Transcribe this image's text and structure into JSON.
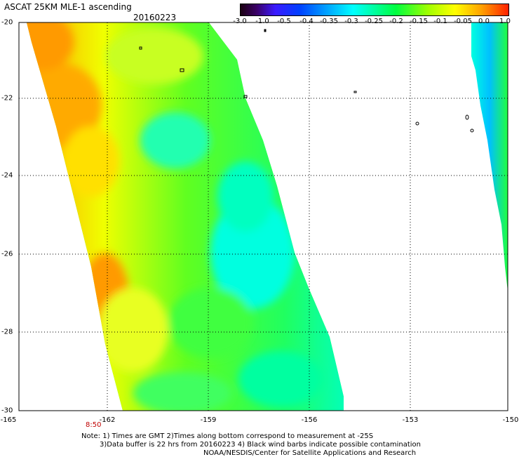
{
  "header": {
    "title": "ASCAT 25KM MLE-1 ascending",
    "date": "20160223"
  },
  "colorbar": {
    "labels": [
      "-3.0",
      "-1.0",
      "-0.5",
      "-0.4",
      "-0.35",
      "-0.3",
      "-0.25",
      "-0.2",
      "-0.15",
      "-0.1",
      "-0.05",
      "0.0",
      "1.0"
    ],
    "colors": [
      "#1a0010",
      "#3a0066",
      "#3a1aff",
      "#0040ff",
      "#00a0ff",
      "#00ffff",
      "#00ff40",
      "#a0ff00",
      "#ffff00",
      "#ffa000",
      "#ff2000"
    ]
  },
  "axes": {
    "lat_labels": [
      "-20",
      "-22",
      "-24",
      "-26",
      "-28",
      "-30"
    ],
    "lon_labels": [
      "-165",
      "-162",
      "-159",
      "-156",
      "-153",
      "-150"
    ],
    "lat_range": [
      -30,
      -20
    ],
    "lon_range": [
      -165,
      -150
    ],
    "grid": "dotted"
  },
  "time_marker": "8:50",
  "notes": {
    "line1": "Note: 1) Times are GMT 2)Times along bottom correspond to measurement at -25S",
    "line2": "3)Data buffer is 22 hrs from 20160223 4) Black wind barbs indicate possible contamination",
    "line3": "NOAA/NESDIS/Center for Satellite Applications and Research"
  }
}
